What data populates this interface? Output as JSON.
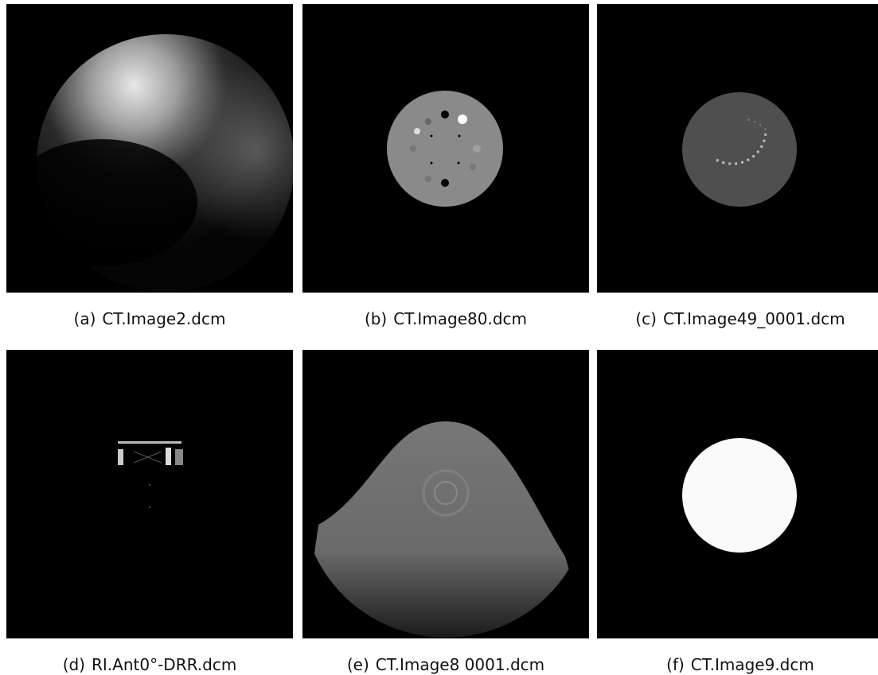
{
  "figure": {
    "panels": [
      {
        "label": "(a)",
        "file": "CT.Image2.dcm"
      },
      {
        "label": "(b)",
        "file": "CT.Image80.dcm"
      },
      {
        "label": "(c)",
        "file": "CT.Image49_0001.dcm"
      },
      {
        "label": "(d)",
        "file": "RI.Ant0°-DRR.dcm"
      },
      {
        "label": "(e)",
        "file": "CT.Image8 0001.dcm"
      },
      {
        "label": "(f)",
        "file": "CT.Image9.dcm"
      }
    ]
  }
}
